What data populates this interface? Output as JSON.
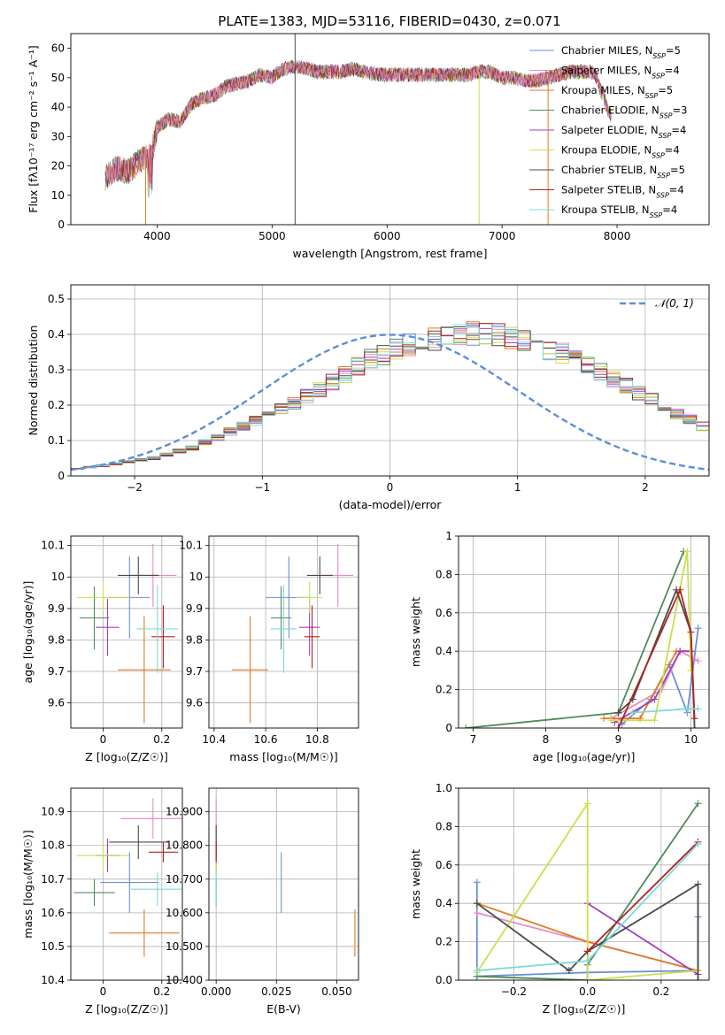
{
  "figure_title": "PLATE=1383, MJD=53116, FIBERID=0430, z=0.071",
  "models": [
    {
      "name": "Chabrier MILES",
      "nssp": "5",
      "color": "#6a8fd8"
    },
    {
      "name": "Salpeter MILES",
      "nssp": "4",
      "color": "#e78ac3"
    },
    {
      "name": "Kroupa MILES",
      "nssp": "5",
      "color": "#e07b24"
    },
    {
      "name": "Chabrier ELODIE",
      "nssp": "3",
      "color": "#4f8a5b"
    },
    {
      "name": "Salpeter ELODIE",
      "nssp": "4",
      "color": "#a040c0"
    },
    {
      "name": "Kroupa ELODIE",
      "nssp": "4",
      "color": "#c8e04c"
    },
    {
      "name": "Chabrier STELIB",
      "nssp": "5",
      "color": "#4a4a4a"
    },
    {
      "name": "Salpeter STELIB",
      "nssp": "4",
      "color": "#b22222"
    },
    {
      "name": "Kroupa STELIB",
      "nssp": "4",
      "color": "#7fd8d8"
    }
  ],
  "legend_suffix": "N_SSP=",
  "normal_legend": "𝒩(0, 1)",
  "chart_data": [
    {
      "id": "spectrum",
      "type": "line",
      "title": "PLATE=1383, MJD=53116, FIBERID=0430, z=0.071",
      "xlabel": "wavelength [Angstrom, rest frame]",
      "ylabel": "Flux [fλ10⁻¹⁷ erg cm⁻² s⁻¹ A⁻¹]",
      "xlim": [
        3250,
        8800
      ],
      "ylim": [
        0,
        65
      ],
      "xticks": [
        4000,
        5000,
        6000,
        7000,
        8000
      ],
      "yticks": [
        0,
        10,
        20,
        30,
        40,
        50,
        60
      ],
      "legend": "top-right",
      "x": [
        3550,
        3650,
        3750,
        3850,
        3950,
        4000,
        4100,
        4200,
        4300,
        4400,
        4500,
        4600,
        4700,
        4800,
        4900,
        5000,
        5100,
        5200,
        5300,
        5400,
        5500,
        5600,
        5700,
        5800,
        5900,
        6000,
        6100,
        6200,
        6300,
        6400,
        6500,
        6600,
        6700,
        6800,
        6900,
        7000,
        7100,
        7200,
        7300,
        7400,
        7500,
        7600,
        7700,
        7800,
        7950
      ],
      "y": [
        16,
        19,
        18,
        22,
        24,
        33,
        36,
        35,
        41,
        43,
        44,
        47,
        48,
        49,
        51,
        50,
        53,
        54,
        53,
        52,
        52,
        52,
        53,
        52,
        51,
        51,
        51,
        51,
        51,
        51,
        51,
        51,
        51,
        52,
        52,
        50,
        50,
        49,
        49,
        50,
        51,
        52,
        52,
        52,
        36
      ],
      "notes": "Nine model curves overlap the observed spectrum; Kroupa/ELODIE curves drop to 0 near 3900, 6800 and 7400 A"
    },
    {
      "id": "residuals",
      "type": "histogram",
      "xlabel": "(data-model)/error",
      "ylabel": "Normed distribution",
      "xlim": [
        -2.5,
        2.5
      ],
      "ylim": [
        0,
        0.54
      ],
      "xticks": [
        -2,
        -1,
        0,
        1,
        2
      ],
      "yticks": [
        0,
        0.1,
        0.2,
        0.3,
        0.4,
        0.5
      ],
      "grid": true,
      "legend": "top-right",
      "bin_width": 0.1,
      "bin_start": -2.5,
      "values": [
        0.02,
        0.025,
        0.028,
        0.035,
        0.04,
        0.045,
        0.05,
        0.06,
        0.07,
        0.08,
        0.095,
        0.11,
        0.125,
        0.14,
        0.155,
        0.17,
        0.19,
        0.205,
        0.225,
        0.245,
        0.265,
        0.285,
        0.31,
        0.33,
        0.345,
        0.36,
        0.37,
        0.385,
        0.39,
        0.395,
        0.4,
        0.4,
        0.4,
        0.395,
        0.39,
        0.385,
        0.375,
        0.36,
        0.35,
        0.33,
        0.315,
        0.295,
        0.275,
        0.255,
        0.235,
        0.215,
        0.195,
        0.175,
        0.16,
        0.14
      ],
      "normal": {
        "mu": 0,
        "sigma": 1
      }
    },
    {
      "id": "age_vs_Z",
      "type": "scatter",
      "xlabel": "Z [log₁₀(Z/Z☉)]",
      "ylabel": "age  [log₁₀(age/yr)]",
      "xlim": [
        -0.11,
        0.27
      ],
      "ylim": [
        9.52,
        10.13
      ],
      "xticks": [
        0.0,
        0.2
      ],
      "yticks": [
        9.6,
        9.7,
        9.8,
        9.9,
        10.0,
        10.1
      ],
      "grid": true,
      "points": [
        {
          "x": 0.09,
          "y": 9.935,
          "xerr": 0.07,
          "yerr": 0.13,
          "c": 0
        },
        {
          "x": 0.17,
          "y": 10.005,
          "xerr": 0.08,
          "yerr": 0.1,
          "c": 1
        },
        {
          "x": 0.14,
          "y": 9.705,
          "xerr": 0.09,
          "yerr": 0.17,
          "c": 2
        },
        {
          "x": -0.03,
          "y": 9.87,
          "xerr": 0.05,
          "yerr": 0.1,
          "c": 3
        },
        {
          "x": 0.015,
          "y": 9.84,
          "xerr": 0.04,
          "yerr": 0.09,
          "c": 4
        },
        {
          "x": 0.0,
          "y": 9.935,
          "xerr": 0.09,
          "yerr": 0.05,
          "c": 5
        },
        {
          "x": 0.12,
          "y": 10.005,
          "xerr": 0.07,
          "yerr": 0.06,
          "c": 6
        },
        {
          "x": 0.205,
          "y": 9.81,
          "xerr": 0.04,
          "yerr": 0.1,
          "c": 7
        },
        {
          "x": 0.185,
          "y": 9.835,
          "xerr": 0.07,
          "yerr": 0.14,
          "c": 8
        }
      ]
    },
    {
      "id": "age_vs_mass",
      "type": "scatter",
      "xlabel": "mass [log₁₀(M/M☉)]",
      "ylabel": "",
      "xlim": [
        10.38,
        10.96
      ],
      "ylim": [
        9.52,
        10.13
      ],
      "xticks": [
        10.4,
        10.6,
        10.8
      ],
      "yticks": [
        9.6,
        9.7,
        9.8,
        9.9,
        10.0,
        10.1
      ],
      "grid": true,
      "points": [
        {
          "x": 10.69,
          "y": 9.935,
          "xerr": 0.09,
          "yerr": 0.13,
          "c": 0
        },
        {
          "x": 10.88,
          "y": 10.005,
          "xerr": 0.06,
          "yerr": 0.1,
          "c": 1
        },
        {
          "x": 10.54,
          "y": 9.705,
          "xerr": 0.07,
          "yerr": 0.17,
          "c": 2
        },
        {
          "x": 10.66,
          "y": 9.87,
          "xerr": 0.04,
          "yerr": 0.1,
          "c": 3
        },
        {
          "x": 10.77,
          "y": 9.84,
          "xerr": 0.04,
          "yerr": 0.09,
          "c": 4
        },
        {
          "x": 10.77,
          "y": 9.935,
          "xerr": 0.05,
          "yerr": 0.05,
          "c": 5
        },
        {
          "x": 10.81,
          "y": 10.005,
          "xerr": 0.05,
          "yerr": 0.06,
          "c": 6
        },
        {
          "x": 10.78,
          "y": 9.81,
          "xerr": 0.03,
          "yerr": 0.1,
          "c": 7
        },
        {
          "x": 10.67,
          "y": 9.835,
          "xerr": 0.05,
          "yerr": 0.14,
          "c": 8
        }
      ]
    },
    {
      "id": "weight_vs_age",
      "type": "line",
      "xlabel": "age  [log₁₀(age/yr)]",
      "ylabel": "mass weight",
      "xlim": [
        6.8,
        10.25
      ],
      "ylim": [
        0,
        1.0
      ],
      "xticks": [
        7,
        8,
        9,
        10
      ],
      "yticks": [
        0.0,
        0.2,
        0.4,
        0.6,
        0.8,
        1.0
      ],
      "grid": true,
      "series": [
        {
          "c": 0,
          "x": [
            9.05,
            9.45,
            9.7,
            9.95,
            10.1
          ],
          "y": [
            0.02,
            0.15,
            0.33,
            0.08,
            0.52
          ]
        },
        {
          "c": 1,
          "x": [
            8.9,
            9.6,
            9.85,
            10.1
          ],
          "y": [
            0.05,
            0.2,
            0.4,
            0.35
          ]
        },
        {
          "c": 2,
          "x": [
            8.8,
            9.3,
            9.8,
            10.0
          ],
          "y": [
            0.05,
            0.05,
            0.4,
            0.4
          ]
        },
        {
          "c": 3,
          "x": [
            6.9,
            9.0,
            9.9
          ],
          "y": [
            0.0,
            0.08,
            0.92
          ]
        },
        {
          "c": 4,
          "x": [
            8.95,
            9.5,
            9.85,
            10.0
          ],
          "y": [
            0.03,
            0.15,
            0.4,
            0.4
          ]
        },
        {
          "c": 5,
          "x": [
            8.9,
            9.5,
            9.95,
            10.0
          ],
          "y": [
            0.04,
            0.04,
            0.92,
            0.3
          ]
        },
        {
          "c": 6,
          "x": [
            9.0,
            9.2,
            9.8,
            10.0,
            10.05
          ],
          "y": [
            0.08,
            0.15,
            0.72,
            0.5,
            0.0
          ]
        },
        {
          "c": 7,
          "x": [
            9.0,
            9.85,
            10.0,
            10.05
          ],
          "y": [
            0.0,
            0.72,
            0.5,
            0.05
          ]
        },
        {
          "c": 8,
          "x": [
            9.2,
            9.95,
            10.1
          ],
          "y": [
            0.08,
            0.1,
            0.1
          ]
        }
      ]
    },
    {
      "id": "mass_vs_Z",
      "type": "scatter",
      "xlabel": "Z [log₁₀(Z/Z☉)]",
      "ylabel": "mass [log₁₀(M/M☉)]",
      "xlim": [
        -0.11,
        0.27
      ],
      "ylim": [
        10.4,
        10.97
      ],
      "xticks": [
        0.0,
        0.2
      ],
      "yticks": [
        10.4,
        10.5,
        10.6,
        10.7,
        10.8,
        10.9
      ],
      "grid": true,
      "points": [
        {
          "x": 0.09,
          "y": 10.69,
          "xerr": 0.1,
          "yerr": 0.09,
          "c": 0
        },
        {
          "x": 0.17,
          "y": 10.88,
          "xerr": 0.11,
          "yerr": 0.06,
          "c": 1
        },
        {
          "x": 0.14,
          "y": 10.54,
          "xerr": 0.12,
          "yerr": 0.07,
          "c": 2
        },
        {
          "x": -0.03,
          "y": 10.66,
          "xerr": 0.07,
          "yerr": 0.04,
          "c": 3
        },
        {
          "x": 0.015,
          "y": 10.77,
          "xerr": 0.04,
          "yerr": 0.05,
          "c": 4
        },
        {
          "x": 0.0,
          "y": 10.77,
          "xerr": 0.09,
          "yerr": 0.05,
          "c": 5
        },
        {
          "x": 0.12,
          "y": 10.81,
          "xerr": 0.1,
          "yerr": 0.05,
          "c": 6
        },
        {
          "x": 0.205,
          "y": 10.78,
          "xerr": 0.05,
          "yerr": 0.03,
          "c": 7
        },
        {
          "x": 0.185,
          "y": 10.67,
          "xerr": 0.09,
          "yerr": 0.05,
          "c": 8
        }
      ]
    },
    {
      "id": "mass_vs_EBV",
      "type": "scatter",
      "xlabel": "E(B-V)",
      "ylabel": "",
      "xlim": [
        -0.003,
        0.059
      ],
      "ylim": [
        10.4,
        10.97
      ],
      "xticks": [
        0.0,
        0.025,
        0.05
      ],
      "yticks": [
        10.4,
        10.5,
        10.6,
        10.7,
        10.8,
        10.9
      ],
      "grid": true,
      "points": [
        {
          "x": 0.027,
          "y": 10.69,
          "xerr": 0,
          "yerr": 0.09,
          "c": 0
        },
        {
          "x": 0.0,
          "y": 10.88,
          "xerr": 0,
          "yerr": 0.06,
          "c": 1
        },
        {
          "x": 0.0575,
          "y": 10.54,
          "xerr": 0,
          "yerr": 0.07,
          "c": 2
        },
        {
          "x": 0.0,
          "y": 10.66,
          "xerr": 0,
          "yerr": 0.04,
          "c": 3
        },
        {
          "x": 0.0,
          "y": 10.77,
          "xerr": 0,
          "yerr": 0.05,
          "c": 4
        },
        {
          "x": 0.0,
          "y": 10.77,
          "xerr": 0,
          "yerr": 0.05,
          "c": 5
        },
        {
          "x": 0.0,
          "y": 10.81,
          "xerr": 0,
          "yerr": 0.05,
          "c": 6
        },
        {
          "x": 0.0,
          "y": 10.78,
          "xerr": 0,
          "yerr": 0.03,
          "c": 7
        },
        {
          "x": 0.0,
          "y": 10.67,
          "xerr": 0,
          "yerr": 0.05,
          "c": 8
        }
      ]
    },
    {
      "id": "weight_vs_Z",
      "type": "line",
      "xlabel": "Z [log₁₀(Z/Z☉)]",
      "ylabel": "mass weight",
      "xlim": [
        -0.35,
        0.33
      ],
      "ylim": [
        0,
        1.0
      ],
      "xticks": [
        -0.2,
        0.0,
        0.2
      ],
      "yticks": [
        0.0,
        0.2,
        0.4,
        0.6,
        0.8,
        1.0
      ],
      "grid": true,
      "series": [
        {
          "c": 0,
          "x": [
            -0.3,
            -0.3,
            0.0,
            0.3,
            0.3
          ],
          "y": [
            0.51,
            0.02,
            0.04,
            0.05,
            0.33
          ]
        },
        {
          "c": 1,
          "x": [
            -0.3,
            0.0,
            0.3
          ],
          "y": [
            0.35,
            0.2,
            0.05
          ]
        },
        {
          "c": 2,
          "x": [
            -0.3,
            0.0,
            0.3
          ],
          "y": [
            0.4,
            0.2,
            0.05
          ]
        },
        {
          "c": 3,
          "x": [
            -0.3,
            0.0,
            0.0,
            0.3
          ],
          "y": [
            0.02,
            0.0,
            0.08,
            0.92
          ]
        },
        {
          "c": 4,
          "x": [
            0.0,
            0.3
          ],
          "y": [
            0.4,
            0.03
          ]
        },
        {
          "c": 5,
          "x": [
            -0.3,
            0.0,
            0.0,
            0.3
          ],
          "y": [
            0.04,
            0.92,
            0.0,
            0.05
          ]
        },
        {
          "c": 6,
          "x": [
            -0.3,
            -0.05,
            0.0,
            0.3,
            0.3
          ],
          "y": [
            0.4,
            0.05,
            0.15,
            0.5,
            0.0
          ]
        },
        {
          "c": 7,
          "x": [
            0.0,
            0.3
          ],
          "y": [
            0.15,
            0.72
          ]
        },
        {
          "c": 8,
          "x": [
            -0.3,
            0.0,
            0.3
          ],
          "y": [
            0.05,
            0.1,
            0.71
          ]
        }
      ]
    }
  ]
}
